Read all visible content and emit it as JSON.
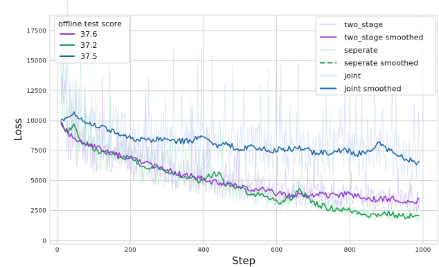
{
  "chart_data": {
    "type": "line",
    "xlabel": "Step",
    "ylabel": "Loss",
    "xlim": [
      -20,
      1040
    ],
    "ylim": [
      -300,
      18800
    ],
    "xticks": [
      0,
      200,
      400,
      600,
      800,
      1000
    ],
    "yticks": [
      0,
      2500,
      5000,
      7500,
      10000,
      12500,
      15000,
      17500
    ],
    "grid": true,
    "left_legend": {
      "title": "offline test score",
      "placement": "top-left",
      "entries": [
        {
          "label": "37.6",
          "color": "#8a3fcf"
        },
        {
          "label": "37.2",
          "color": "#1f9a4e"
        },
        {
          "label": "37.5",
          "color": "#2166a8"
        }
      ]
    },
    "right_legend": {
      "placement": "top-right",
      "entries": [
        {
          "label": "two_stage",
          "color": "#e4d8f5",
          "style": "solid"
        },
        {
          "label": "two_stage smoothed",
          "color": "#8a3fcf",
          "style": "solid"
        },
        {
          "label": "seperate",
          "color": "#d2f5e0",
          "style": "solid"
        },
        {
          "label": "seperate smoothed",
          "color": "#1f9a4e",
          "style": "dashed"
        },
        {
          "label": "joint",
          "color": "#d6e6f8",
          "style": "solid"
        },
        {
          "label": "joint smoothed",
          "color": "#2166a8",
          "style": "solid"
        }
      ]
    },
    "series": [
      {
        "name": "two_stage smoothed",
        "color": "#8a3fcf",
        "raw_color": "#cdb7f0",
        "x": [
          10,
          30,
          50,
          75,
          100,
          130,
          160,
          200,
          240,
          280,
          320,
          360,
          400,
          430,
          460,
          500,
          540,
          580,
          600,
          640,
          680,
          720,
          760,
          800,
          840,
          880,
          920,
          960,
          990
        ],
        "y": [
          9800,
          9000,
          8500,
          8000,
          7800,
          7500,
          7200,
          6900,
          6500,
          6000,
          5700,
          5400,
          5100,
          4900,
          4700,
          4500,
          4300,
          4100,
          3900,
          3800,
          3700,
          3900,
          3700,
          3900,
          3500,
          3400,
          3500,
          3300,
          3300
        ]
      },
      {
        "name": "seperate smoothed",
        "color": "#1f9a4e",
        "raw_color": "#b6f0cf",
        "x": [
          10,
          30,
          45,
          60,
          75,
          100,
          130,
          160,
          200,
          240,
          280,
          320,
          360,
          390,
          420,
          440,
          460,
          500,
          540,
          580,
          610,
          640,
          660,
          700,
          740,
          780,
          820,
          860,
          900,
          940,
          970,
          990
        ],
        "y": [
          9800,
          9000,
          9800,
          8400,
          8200,
          7600,
          7300,
          7100,
          6900,
          6200,
          6000,
          5600,
          5300,
          5000,
          5400,
          5700,
          4700,
          4300,
          3900,
          3600,
          3200,
          3600,
          4200,
          3200,
          2700,
          2600,
          2400,
          2100,
          2300,
          2000,
          2100,
          1900
        ]
      },
      {
        "name": "joint smoothed",
        "color": "#2166a8",
        "raw_color": "#c9dcf5",
        "x": [
          10,
          25,
          45,
          60,
          80,
          100,
          130,
          160,
          200,
          240,
          280,
          320,
          360,
          400,
          430,
          460,
          500,
          540,
          580,
          620,
          660,
          700,
          740,
          780,
          820,
          860,
          880,
          920,
          960,
          990
        ],
        "y": [
          10200,
          10100,
          10800,
          10200,
          9900,
          9700,
          9400,
          9000,
          8600,
          8300,
          8500,
          8300,
          8300,
          8600,
          7900,
          8000,
          7700,
          7800,
          7500,
          7600,
          7700,
          7400,
          7300,
          7600,
          7200,
          7400,
          8100,
          7300,
          6800,
          6400
        ]
      }
    ]
  }
}
